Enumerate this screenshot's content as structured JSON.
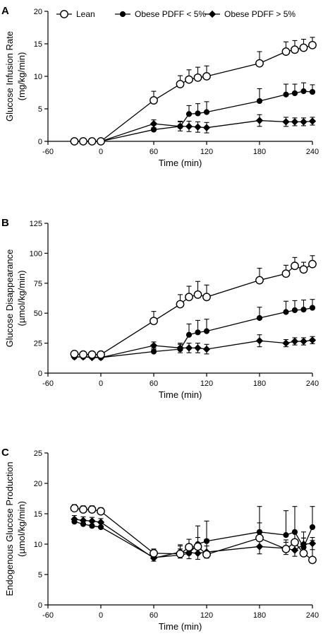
{
  "chart_data": [
    {
      "type": "line",
      "panel": "A",
      "xlabel": "Time (min)",
      "ylabel": "Glucose Infusion Rate",
      "ylabel_unit": "(mg/kg/min)",
      "xlim": [
        -60,
        240
      ],
      "ylim": [
        0,
        20
      ],
      "xticks": [
        "-60",
        "0",
        "60",
        "120",
        "180",
        "240"
      ],
      "yticks": [
        "0",
        "5",
        "10",
        "15",
        "20"
      ],
      "legend": {
        "placement": "top",
        "entries": [
          "Lean",
          "Obese PDFF < 5%",
          "Obese PDFF > 5%"
        ]
      },
      "series": [
        {
          "name": "Lean",
          "marker": "open-circle",
          "x": [
            -30,
            -20,
            -10,
            0,
            60,
            90,
            100,
            110,
            120,
            180,
            210,
            220,
            230,
            240
          ],
          "y": [
            0,
            0,
            0,
            0,
            6.3,
            8.8,
            9.5,
            9.8,
            10.0,
            12.0,
            13.8,
            14.1,
            14.4,
            14.8
          ],
          "err": [
            0,
            0,
            0,
            0,
            1.4,
            1.3,
            1.5,
            1.6,
            1.6,
            1.8,
            1.5,
            1.4,
            1.3,
            1.2
          ]
        },
        {
          "name": "Obese PDFF < 5%",
          "marker": "filled-circle",
          "x": [
            -30,
            -20,
            -10,
            0,
            60,
            90,
            100,
            110,
            120,
            180,
            210,
            220,
            230,
            240
          ],
          "y": [
            0,
            0,
            0,
            0,
            1.8,
            2.3,
            4.2,
            4.3,
            4.5,
            6.2,
            7.2,
            7.4,
            7.7,
            7.6
          ],
          "err": [
            0,
            0,
            0,
            0,
            0.7,
            0.8,
            1.3,
            1.5,
            1.6,
            1.9,
            1.6,
            1.4,
            1.3,
            1.1
          ]
        },
        {
          "name": "Obese PDFF > 5%",
          "marker": "filled-diamond",
          "x": [
            -30,
            -20,
            -10,
            0,
            60,
            90,
            100,
            110,
            120,
            180,
            210,
            220,
            230,
            240
          ],
          "y": [
            0,
            0,
            0,
            0,
            2.7,
            2.3,
            2.3,
            2.2,
            2.1,
            3.2,
            3.0,
            3.0,
            3.0,
            3.1
          ],
          "err": [
            0,
            0,
            0,
            0,
            0.6,
            0.7,
            0.8,
            0.8,
            0.8,
            0.9,
            0.7,
            0.6,
            0.6,
            0.6
          ]
        }
      ]
    },
    {
      "type": "line",
      "panel": "B",
      "xlabel": "Time (min)",
      "ylabel": "Glucose Disappearance",
      "ylabel_unit": "(µmol/kg/min)",
      "xlim": [
        -60,
        240
      ],
      "ylim": [
        0,
        125
      ],
      "xticks": [
        "-60",
        "0",
        "60",
        "120",
        "180",
        "240"
      ],
      "yticks": [
        "0",
        "25",
        "50",
        "75",
        "100",
        "125"
      ],
      "series": [
        {
          "name": "Lean",
          "marker": "open-circle",
          "x": [
            -30,
            -20,
            -10,
            0,
            60,
            90,
            100,
            110,
            120,
            180,
            210,
            220,
            230,
            240
          ],
          "y": [
            16,
            15.5,
            15.5,
            15.5,
            43.5,
            57.5,
            63.5,
            65.5,
            63.5,
            77.5,
            83,
            89.5,
            86.5,
            91
          ],
          "err": [
            1,
            1,
            1,
            1,
            8,
            8,
            9,
            11,
            10,
            10,
            7,
            7,
            6,
            7
          ]
        },
        {
          "name": "Obese PDFF < 5%",
          "marker": "filled-circle",
          "x": [
            -30,
            -20,
            -10,
            0,
            60,
            90,
            100,
            110,
            120,
            180,
            210,
            220,
            230,
            240
          ],
          "y": [
            13.5,
            13.5,
            13.5,
            13,
            18,
            20,
            32,
            34,
            35,
            46,
            51,
            52.5,
            53,
            54.5
          ],
          "err": [
            1,
            1,
            1,
            1,
            3,
            4,
            9,
            10,
            10,
            9,
            9,
            8,
            8,
            7
          ]
        },
        {
          "name": "Obese PDFF > 5%",
          "marker": "filled-diamond",
          "x": [
            -30,
            -20,
            -10,
            0,
            60,
            90,
            100,
            110,
            120,
            180,
            210,
            220,
            230,
            240
          ],
          "y": [
            13.5,
            13.5,
            13,
            13,
            23,
            21,
            21,
            21,
            20,
            27,
            25,
            26.5,
            26.5,
            27.5
          ],
          "err": [
            1,
            1,
            1,
            1,
            3,
            4,
            4,
            4,
            4,
            5,
            3,
            3,
            3,
            3
          ]
        }
      ]
    },
    {
      "type": "line",
      "panel": "C",
      "xlabel": "Time (min)",
      "ylabel": "Endogenous Glucose Production",
      "ylabel_unit": "(µmol/kg/min)",
      "xlim": [
        -60,
        240
      ],
      "ylim": [
        0,
        25
      ],
      "xticks": [
        "-60",
        "0",
        "60",
        "120",
        "180",
        "240"
      ],
      "yticks": [
        "0",
        "5",
        "10",
        "15",
        "20",
        "25"
      ],
      "series": [
        {
          "name": "Lean",
          "marker": "open-circle",
          "x": [
            -30,
            -20,
            -10,
            0,
            60,
            90,
            100,
            110,
            120,
            180,
            210,
            220,
            230,
            240
          ],
          "y": [
            15.9,
            15.7,
            15.7,
            15.4,
            8.5,
            8.4,
            9.5,
            9.6,
            8.3,
            11.0,
            9.2,
            10.3,
            8.5,
            7.4
          ],
          "err": [
            0.6,
            0.6,
            0.6,
            0.6,
            0.7,
            1.5,
            1.3,
            1.5,
            2.5,
            2.5,
            1.5,
            1.5,
            2.5,
            3.2
          ]
        },
        {
          "name": "Obese PDFF < 5%",
          "marker": "filled-circle",
          "x": [
            -30,
            -20,
            -10,
            0,
            60,
            90,
            100,
            110,
            120,
            180,
            210,
            220,
            230,
            240
          ],
          "y": [
            13.7,
            13.3,
            13.0,
            12.8,
            7.8,
            8.2,
            8.5,
            10.0,
            10.5,
            12.0,
            11.5,
            12.0,
            9.5,
            12.8
          ],
          "err": [
            0.6,
            0.6,
            0.6,
            0.6,
            0.5,
            1.0,
            1.5,
            3.0,
            3.3,
            4.2,
            4.0,
            4.2,
            2.5,
            3.4
          ]
        },
        {
          "name": "Obese PDFF > 5%",
          "marker": "filled-diamond",
          "x": [
            -30,
            -20,
            -10,
            0,
            60,
            90,
            100,
            110,
            120,
            180,
            210,
            220,
            230,
            240
          ],
          "y": [
            14.1,
            13.9,
            13.8,
            13.6,
            7.7,
            8.7,
            8.6,
            8.5,
            8.7,
            9.6,
            9.3,
            9.0,
            10.0,
            10.1
          ],
          "err": [
            0.6,
            0.6,
            0.6,
            0.6,
            0.5,
            1.0,
            1.0,
            1.0,
            1.0,
            1.2,
            1.0,
            1.0,
            1.0,
            1.0
          ]
        }
      ]
    }
  ]
}
